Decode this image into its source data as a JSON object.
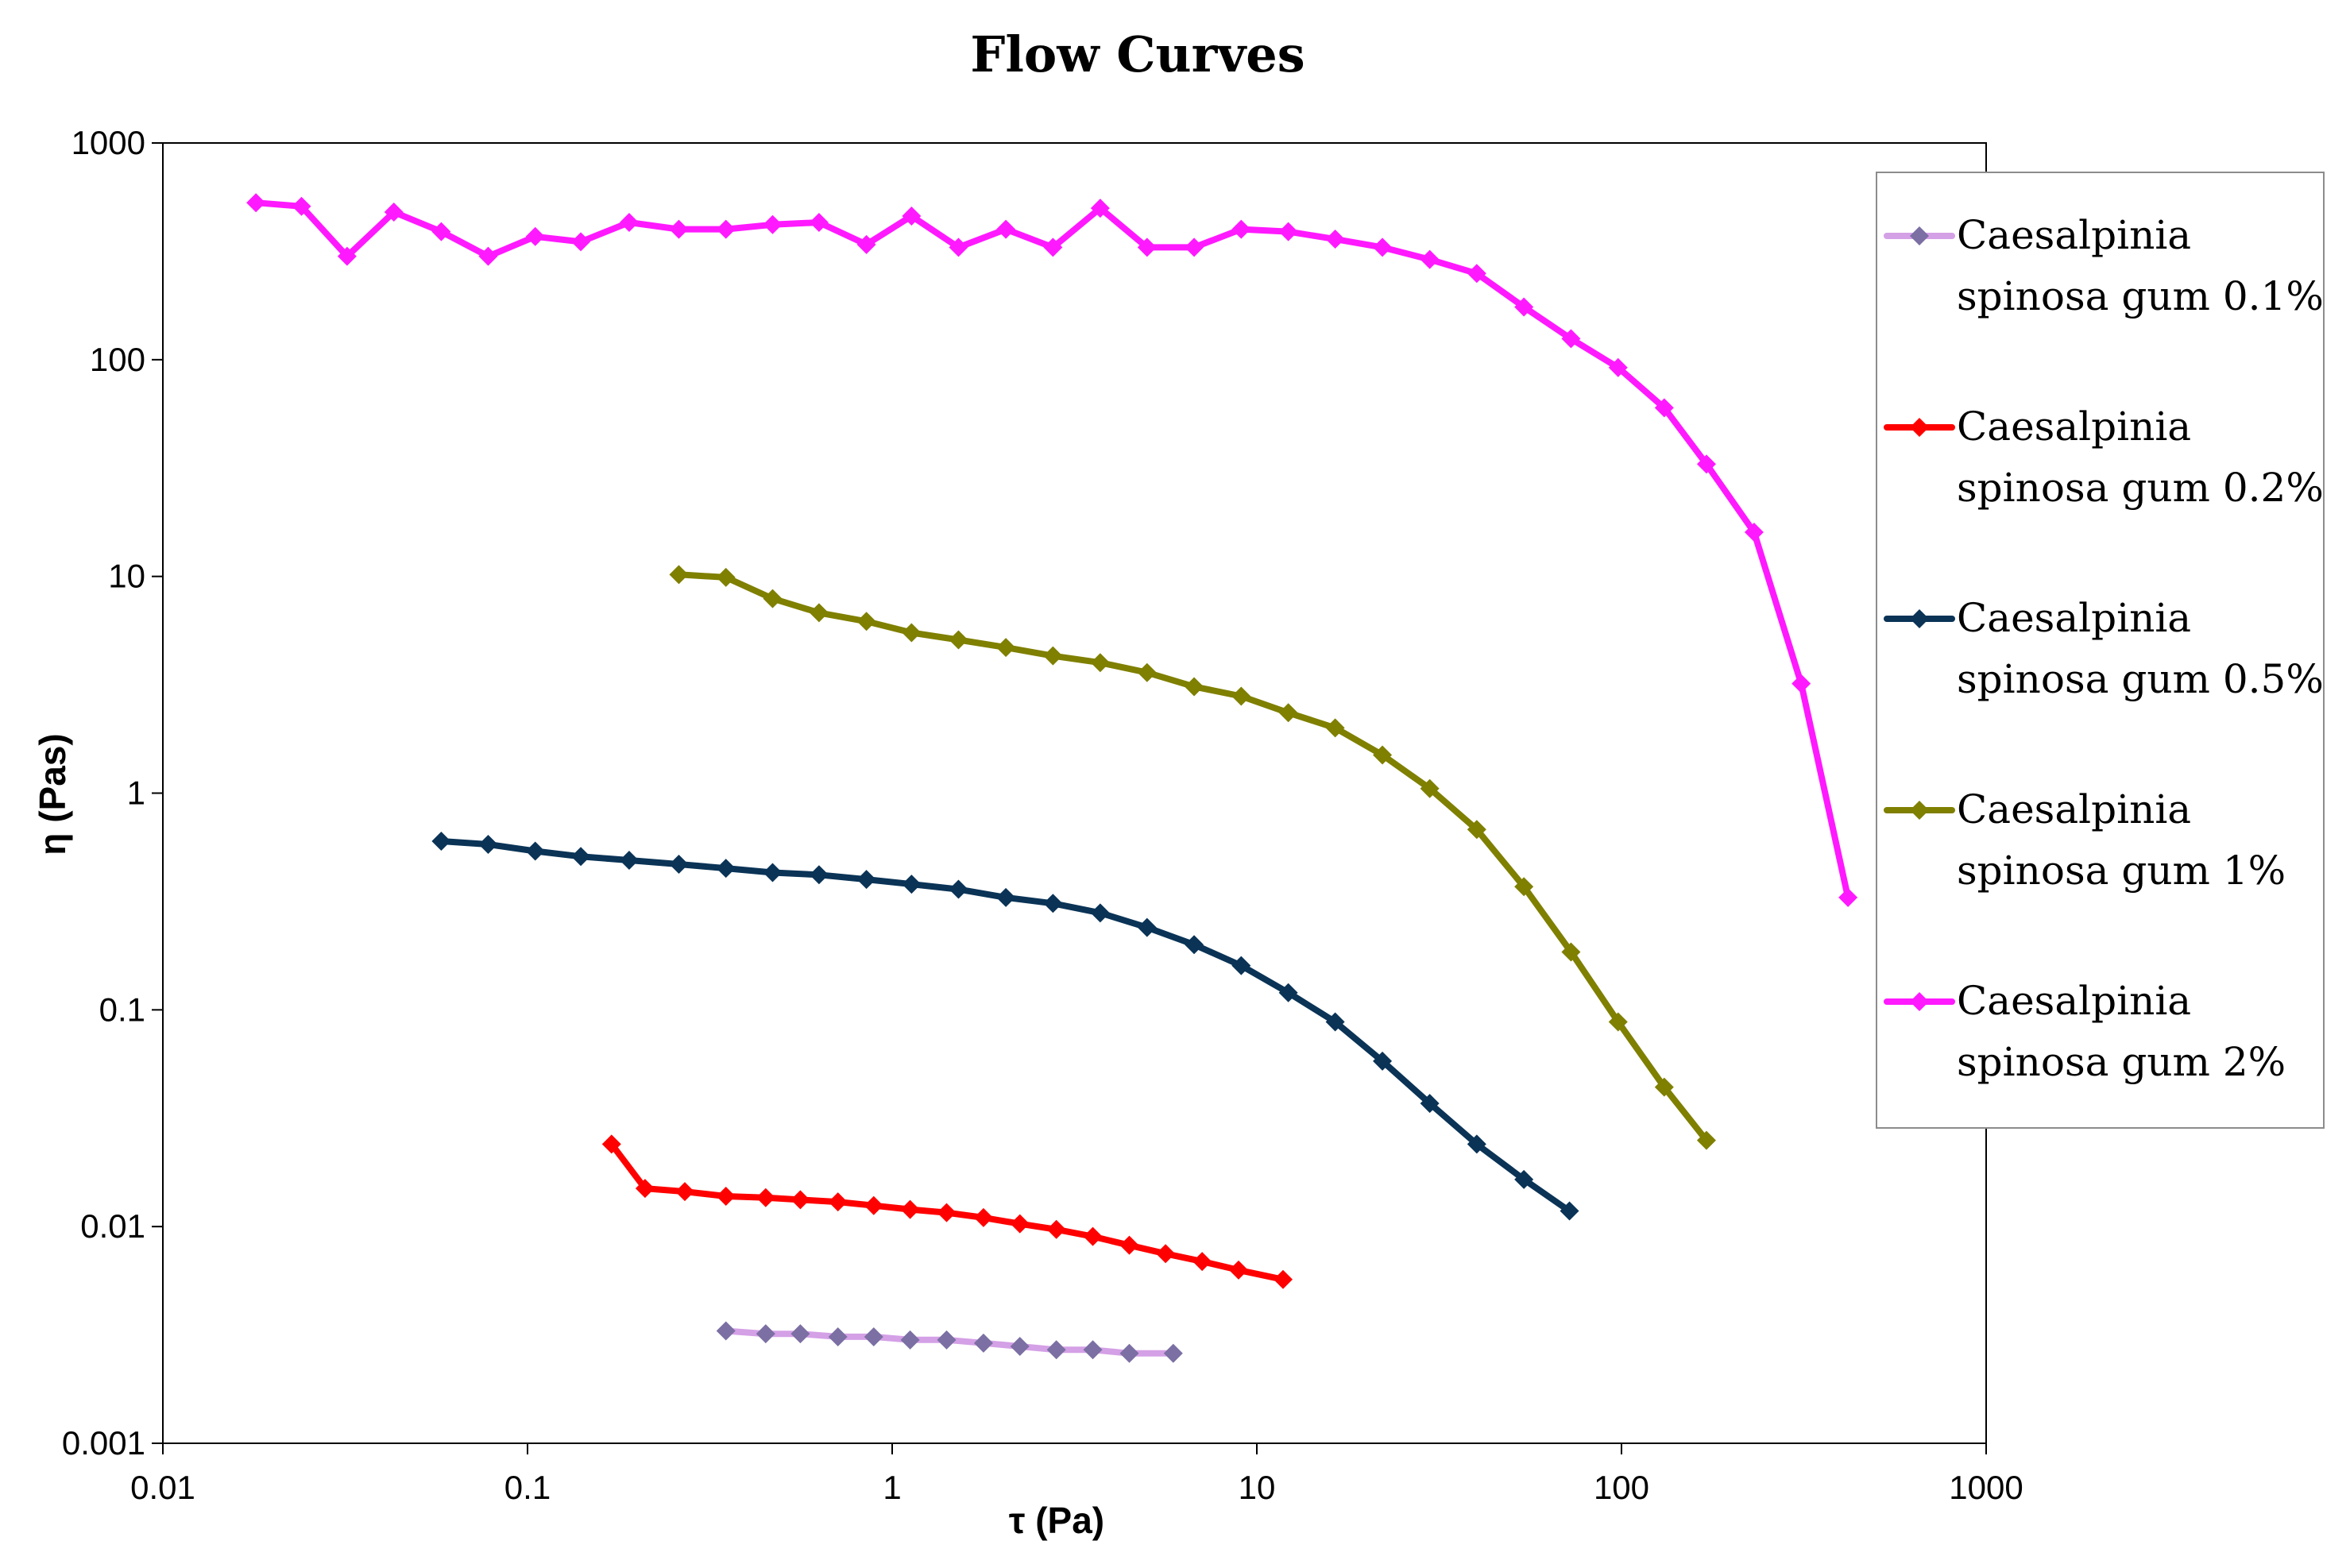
{
  "chart_data": {
    "type": "line",
    "title": "Flow Curves",
    "xlabel": "τ (Pa)",
    "ylabel": "η (Pas)",
    "xscale": "log",
    "yscale": "log",
    "xlim": [
      0.01,
      1000
    ],
    "ylim": [
      0.001,
      1000
    ],
    "xticks": [
      {
        "value": 0.01,
        "label": "0.01"
      },
      {
        "value": 0.1,
        "label": "0.1"
      },
      {
        "value": 1,
        "label": "1"
      },
      {
        "value": 10,
        "label": "10"
      },
      {
        "value": 100,
        "label": "100"
      },
      {
        "value": 1000,
        "label": "1000"
      }
    ],
    "yticks": [
      {
        "value": 0.001,
        "label": "0.001"
      },
      {
        "value": 0.01,
        "label": "0.01"
      },
      {
        "value": 0.1,
        "label": "0.1"
      },
      {
        "value": 1,
        "label": "1"
      },
      {
        "value": 10,
        "label": "10"
      },
      {
        "value": 100,
        "label": "100"
      },
      {
        "value": 1000,
        "label": "1000"
      }
    ],
    "grid": false,
    "legend_position": "right",
    "series": [
      {
        "name": "Caesalpinia spinosa gum 0.1%",
        "legend_lines": [
          "Caesalpinia",
          "spinosa gum 0.1%"
        ],
        "line_color": "#d4a0e6",
        "marker_color": "#7b6fa3",
        "x": [
          0.35,
          0.45,
          0.56,
          0.71,
          0.89,
          1.12,
          1.41,
          1.78,
          2.24,
          2.82,
          3.55,
          4.47,
          5.9
        ],
        "y": [
          0.0033,
          0.0032,
          0.0032,
          0.0031,
          0.0031,
          0.003,
          0.003,
          0.0029,
          0.0028,
          0.0027,
          0.0027,
          0.0026,
          0.0026
        ]
      },
      {
        "name": "Caesalpinia spinosa gum 0.2%",
        "legend_lines": [
          "Caesalpinia",
          "spinosa gum 0.2%"
        ],
        "line_color": "#ff0000",
        "marker_color": "#ff0000",
        "x": [
          0.17,
          0.21,
          0.27,
          0.35,
          0.45,
          0.56,
          0.71,
          0.89,
          1.12,
          1.41,
          1.78,
          2.24,
          2.82,
          3.55,
          4.47,
          5.62,
          7.08,
          8.91,
          11.8
        ],
        "y": [
          0.024,
          0.015,
          0.0145,
          0.0138,
          0.0136,
          0.0133,
          0.013,
          0.0125,
          0.012,
          0.0116,
          0.011,
          0.0103,
          0.0097,
          0.009,
          0.0082,
          0.0075,
          0.0069,
          0.0063,
          0.0057
        ]
      },
      {
        "name": "Caesalpinia spinosa gum 0.5%",
        "legend_lines": [
          "Caesalpinia",
          "spinosa gum 0.5%"
        ],
        "line_color": "#0a3356",
        "marker_color": "#0a3356",
        "x": [
          0.058,
          0.078,
          0.105,
          0.14,
          0.19,
          0.26,
          0.35,
          0.47,
          0.63,
          0.85,
          1.13,
          1.52,
          2.05,
          2.76,
          3.72,
          5.0,
          6.73,
          9.06,
          12.2,
          16.4,
          22.1,
          29.8,
          40.1,
          54.0,
          72.0
        ],
        "y": [
          0.6,
          0.58,
          0.54,
          0.51,
          0.49,
          0.47,
          0.45,
          0.43,
          0.42,
          0.4,
          0.38,
          0.36,
          0.33,
          0.31,
          0.28,
          0.24,
          0.2,
          0.16,
          0.12,
          0.088,
          0.058,
          0.037,
          0.024,
          0.0165,
          0.0118
        ]
      },
      {
        "name": "Caesalpinia spinosa gum 1%",
        "legend_lines": [
          "Caesalpinia",
          "spinosa gum 1%"
        ],
        "line_color": "#7f7f00",
        "marker_color": "#7f7f00",
        "x": [
          0.26,
          0.35,
          0.47,
          0.63,
          0.85,
          1.13,
          1.52,
          2.05,
          2.76,
          3.72,
          5.0,
          6.73,
          9.06,
          12.2,
          16.4,
          22.1,
          29.8,
          40.1,
          54.0,
          72.7,
          97.9,
          131,
          171
        ],
        "y": [
          10.2,
          9.9,
          7.9,
          6.8,
          6.2,
          5.5,
          5.1,
          4.7,
          4.3,
          4.0,
          3.6,
          3.1,
          2.8,
          2.35,
          2.0,
          1.5,
          1.05,
          0.68,
          0.37,
          0.185,
          0.088,
          0.044,
          0.025
        ]
      },
      {
        "name": "Caesalpinia spinosa gum 2%",
        "legend_lines": [
          "Caesalpinia",
          "spinosa gum 2%"
        ],
        "line_color": "#ff19ff",
        "marker_color": "#ff19ff",
        "x": [
          0.018,
          0.024,
          0.032,
          0.043,
          0.058,
          0.078,
          0.105,
          0.14,
          0.19,
          0.26,
          0.35,
          0.47,
          0.63,
          0.85,
          1.13,
          1.52,
          2.05,
          2.76,
          3.72,
          5.0,
          6.73,
          9.06,
          12.2,
          16.4,
          22.1,
          29.8,
          40.1,
          54.0,
          72.7,
          97.9,
          131,
          171,
          231,
          311,
          418
        ],
        "y": [
          530,
          510,
          300,
          480,
          390,
          300,
          370,
          350,
          430,
          400,
          400,
          420,
          430,
          340,
          460,
          330,
          400,
          330,
          500,
          330,
          330,
          400,
          390,
          360,
          330,
          290,
          250,
          175,
          125,
          92,
          60,
          33,
          16,
          3.2,
          0.33
        ]
      }
    ]
  }
}
